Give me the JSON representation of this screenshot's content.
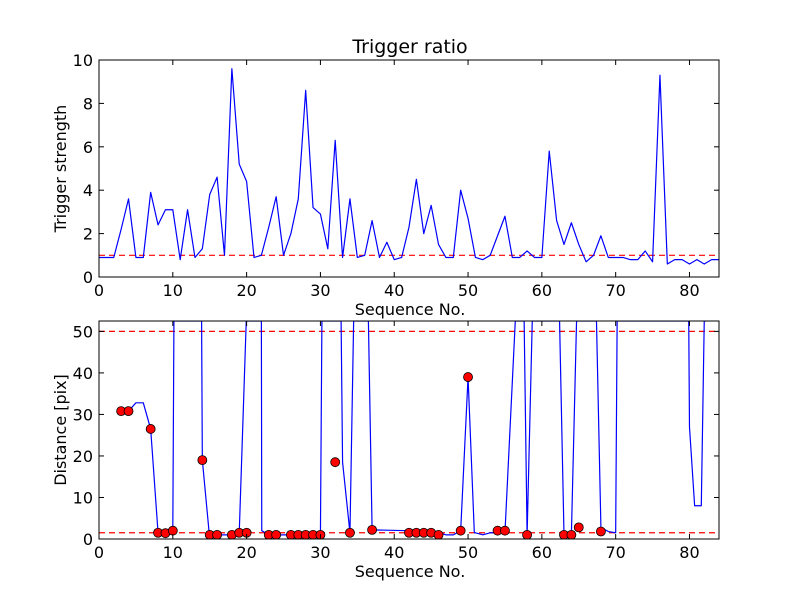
{
  "chart_data": [
    {
      "type": "line",
      "title": "Trigger ratio",
      "xlabel": "Sequence No.",
      "ylabel": "Trigger strength",
      "xlim": [
        0,
        84
      ],
      "ylim": [
        0,
        10
      ],
      "xticks": [
        0,
        10,
        20,
        30,
        40,
        50,
        60,
        70,
        80
      ],
      "yticks": [
        0,
        2,
        4,
        6,
        8,
        10
      ],
      "grid": false,
      "series": [
        {
          "color": "#0000ff",
          "style": "solid",
          "x": [
            0,
            1,
            2,
            3,
            4,
            5,
            6,
            7,
            8,
            9,
            10,
            11,
            12,
            13,
            14,
            15,
            16,
            17,
            18,
            19,
            20,
            21,
            22,
            23,
            24,
            25,
            26,
            27,
            28,
            29,
            30,
            31,
            32,
            33,
            34,
            35,
            36,
            37,
            38,
            39,
            40,
            41,
            42,
            43,
            44,
            45,
            46,
            47,
            48,
            49,
            50,
            51,
            52,
            53,
            54,
            55,
            56,
            57,
            58,
            59,
            60,
            61,
            62,
            63,
            64,
            65,
            66,
            67,
            68,
            69,
            70,
            71,
            72,
            73,
            74,
            75,
            76,
            77,
            78,
            79,
            80,
            81,
            82,
            83,
            84
          ],
          "values": [
            0.9,
            0.9,
            0.9,
            2.2,
            3.6,
            0.9,
            0.9,
            3.9,
            2.4,
            3.1,
            3.1,
            0.8,
            3.1,
            0.9,
            1.3,
            3.8,
            4.6,
            1.0,
            9.6,
            5.2,
            4.4,
            0.9,
            1.0,
            2.3,
            3.7,
            1.0,
            2.0,
            3.6,
            8.6,
            3.2,
            2.9,
            1.3,
            6.3,
            0.9,
            3.6,
            0.9,
            1.0,
            2.6,
            0.9,
            1.6,
            0.8,
            0.9,
            2.3,
            4.5,
            2.0,
            3.3,
            1.5,
            0.9,
            0.9,
            4.0,
            2.7,
            0.9,
            0.8,
            1.0,
            1.9,
            2.8,
            0.9,
            0.9,
            1.2,
            0.9,
            0.9,
            5.8,
            2.6,
            1.5,
            2.5,
            1.5,
            0.7,
            1.0,
            1.9,
            0.9,
            0.9,
            0.9,
            0.8,
            0.8,
            1.2,
            0.7,
            9.3,
            0.6,
            0.8,
            0.8,
            0.6,
            0.8,
            0.6,
            0.8,
            0.8
          ]
        }
      ],
      "reference_lines": [
        {
          "y": 1.0,
          "color": "#ff0000",
          "style": "dashed"
        }
      ]
    },
    {
      "type": "line",
      "title": "",
      "xlabel": "Sequence No.",
      "ylabel": "Distance [pix]",
      "xlim": [
        0,
        84
      ],
      "ylim": [
        0,
        52.5
      ],
      "xticks": [
        0,
        10,
        20,
        30,
        40,
        50,
        60,
        70,
        80
      ],
      "yticks": [
        0,
        10,
        20,
        30,
        40,
        50
      ],
      "grid": false,
      "series": [
        {
          "color": "#0000ff",
          "style": "solid",
          "x": [
            3,
            4,
            5,
            6,
            7,
            8,
            9,
            10,
            10.15,
            11,
            12,
            13,
            13.9,
            14,
            14.95,
            15,
            16,
            17,
            18,
            19,
            19.95,
            20,
            20.05,
            21,
            22,
            22.05,
            23,
            24,
            25,
            26,
            27,
            28,
            29,
            30,
            30.2,
            31,
            32,
            32.8,
            33,
            34,
            34.5,
            35,
            36,
            36.5,
            37,
            41.8,
            42,
            43,
            44,
            45,
            46,
            47,
            48,
            49,
            50,
            50.85,
            51,
            52,
            53,
            54,
            55,
            56.4,
            57,
            57.6,
            58,
            58.7,
            59,
            62.4,
            63,
            64,
            64.7,
            65,
            66.4,
            67,
            67.4,
            68,
            69,
            70,
            70.2,
            79.9,
            80,
            80.7,
            81,
            81.6,
            82,
            82.3
          ],
          "values": [
            30.8,
            30.8,
            32.8,
            32.8,
            26.5,
            1.5,
            1.4,
            2.0,
            52.5,
            52.5,
            52.5,
            52.5,
            52.5,
            19.0,
            1.0,
            1.0,
            1.0,
            1.0,
            1.0,
            1.5,
            52.5,
            52.5,
            52.5,
            52.5,
            52.5,
            2.0,
            1.0,
            1.0,
            1.0,
            1.0,
            1.0,
            1.0,
            1.0,
            1.0,
            52.5,
            52.5,
            52.5,
            52.5,
            18.5,
            1.5,
            52.5,
            52.5,
            52.5,
            52.5,
            2.2,
            2.0,
            1.5,
            1.4,
            1.5,
            1.5,
            1.5,
            1.0,
            1.0,
            2.0,
            39.0,
            1.5,
            1.5,
            1.0,
            1.5,
            1.5,
            1.5,
            52.5,
            52.5,
            52.5,
            1.0,
            52.5,
            52.5,
            52.5,
            1.0,
            1.0,
            52.5,
            52.5,
            52.5,
            52.5,
            52.5,
            2.8,
            1.8,
            1.5,
            52.5,
            52.5,
            27.0,
            8.0,
            8.0,
            8.0,
            52.5,
            52.5
          ]
        },
        {
          "color": "#ff0000",
          "style": "markers",
          "x": [
            3,
            4,
            7,
            8,
            9,
            10,
            14,
            15,
            16,
            18,
            19,
            20,
            23,
            24,
            26,
            27,
            28,
            29,
            30,
            32,
            34,
            37,
            42,
            43,
            44,
            45,
            46,
            49,
            50,
            54,
            55,
            58,
            63,
            64,
            65,
            68
          ],
          "values": [
            30.8,
            30.8,
            26.5,
            1.5,
            1.4,
            2.0,
            19.0,
            1.0,
            1.0,
            1.0,
            1.5,
            1.5,
            1.0,
            1.0,
            1.0,
            1.0,
            1.0,
            1.0,
            1.0,
            18.5,
            1.5,
            2.2,
            1.5,
            1.5,
            1.5,
            1.5,
            1.0,
            2.0,
            39.0,
            2.0,
            2.0,
            1.0,
            1.0,
            1.0,
            2.8,
            1.8
          ]
        }
      ],
      "reference_lines": [
        {
          "y": 1.5,
          "color": "#ff0000",
          "style": "dashed"
        },
        {
          "y": 50.0,
          "color": "#ff0000",
          "style": "dashed"
        }
      ]
    }
  ]
}
